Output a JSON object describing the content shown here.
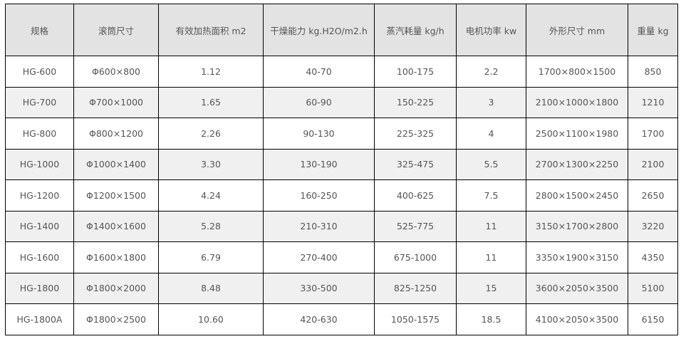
{
  "table": {
    "headers": [
      "规格",
      "滚筒尺寸",
      "有效加热面积 m2",
      "干燥能力 kg.H2O/m2.h",
      "蒸汽耗量 kg/h",
      "电机功率 kw",
      "外形尺寸 mm",
      "重量 kg"
    ],
    "rows": [
      [
        "HG-600",
        "Φ600×800",
        "1.12",
        "40-70",
        "100-175",
        "2.2",
        "1700×800×1500",
        "850"
      ],
      [
        "HG-700",
        "Φ700×1000",
        "1.65",
        "60-90",
        "150-225",
        "3",
        "2100×1000×1800",
        "1210"
      ],
      [
        "HG-800",
        "Φ800×1200",
        "2.26",
        "90-130",
        "225-325",
        "4",
        "2500×1100×1980",
        "1700"
      ],
      [
        "HG-1000",
        "Φ1000×1400",
        "3.30",
        "130-190",
        "325-475",
        "5.5",
        "2700×1300×2250",
        "2100"
      ],
      [
        "HG-1200",
        "Φ1200×1500",
        "4.24",
        "160-250",
        "400-625",
        "7.5",
        "2800×1500×2450",
        "2650"
      ],
      [
        "HG-1400",
        "Φ1400×1600",
        "5.28",
        "210-310",
        "525-775",
        "11",
        "3150×1700×2800",
        "3220"
      ],
      [
        "HG-1600",
        "Φ1600×1800",
        "6.79",
        "270-400",
        "675-1000",
        "11",
        "3350×1900×3150",
        "4350"
      ],
      [
        "HG-1800",
        "Φ1800×2000",
        "8.48",
        "330-500",
        "825-1250",
        "15",
        "3600×2050×3500",
        "5100"
      ],
      [
        "HG-1800A",
        "Φ1800×2500",
        "10.60",
        "420-630",
        "1050-1575",
        "18.5",
        "4100×2050×3500",
        "6150"
      ]
    ]
  },
  "colors": {
    "header_bg": "#e3e3e3",
    "stripe_bg": "#f0f0f0",
    "text": "#555555",
    "border": "#000000"
  }
}
